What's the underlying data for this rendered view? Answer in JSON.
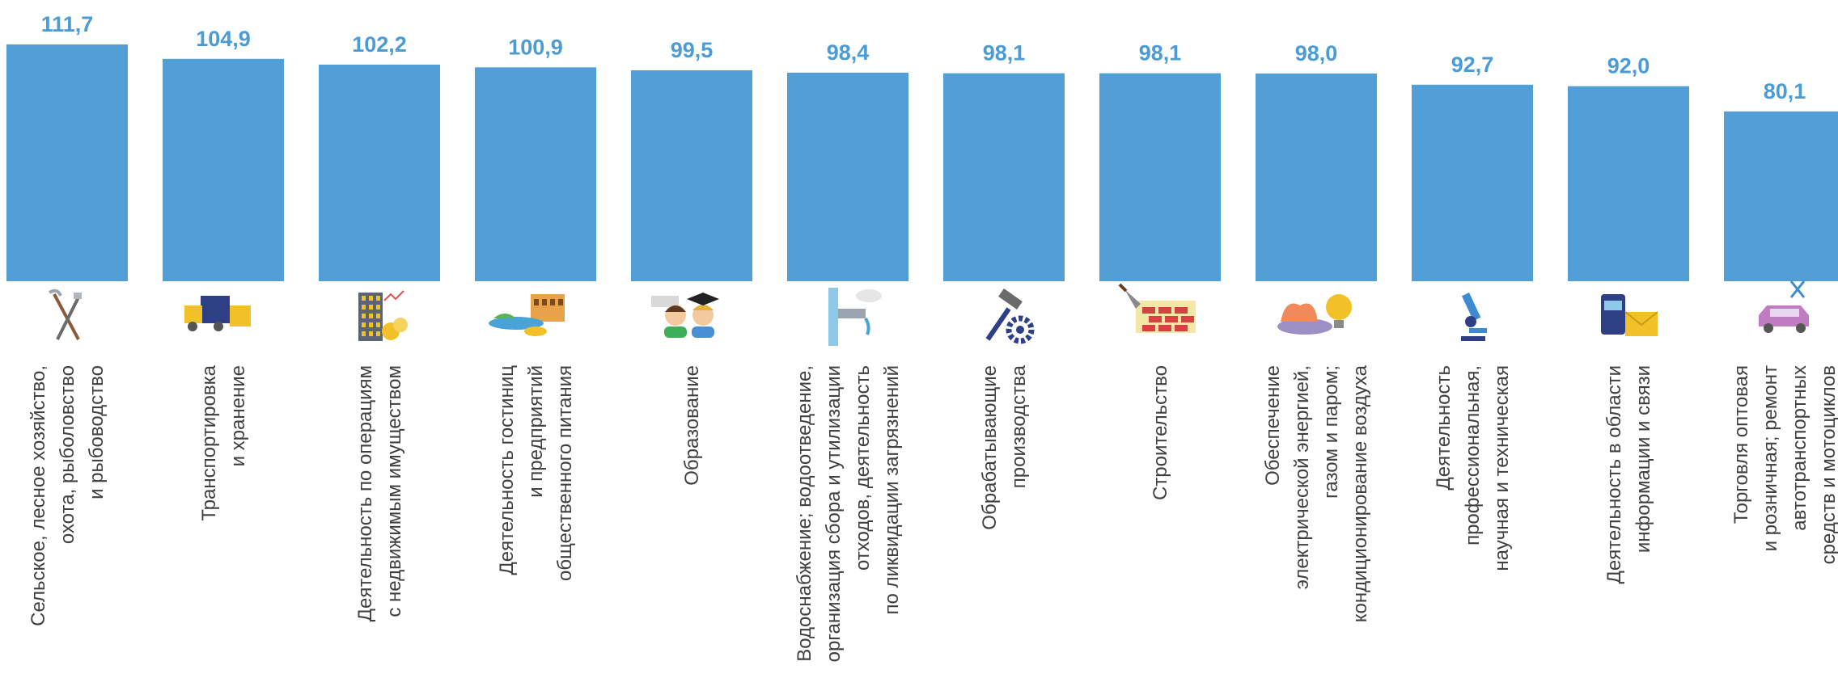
{
  "chart_data": {
    "type": "bar",
    "title": "",
    "xlabel": "",
    "ylabel": "",
    "grid": false,
    "legend": "none",
    "ylim": [
      0,
      111.7
    ],
    "value_labels": [
      "111,7",
      "104,9",
      "102,2",
      "100,9",
      "99,5",
      "98,4",
      "98,1",
      "98,1",
      "98,0",
      "92,7",
      "92,0",
      "80,1"
    ],
    "values": [
      111.7,
      104.9,
      102.2,
      100.9,
      99.5,
      98.4,
      98.1,
      98.1,
      98.0,
      92.7,
      92.0,
      80.1
    ],
    "categories": [
      [
        "Сельское, лесное хозяйство,",
        "охота, рыболовство",
        "и рыбоводство"
      ],
      [
        "Транспортировка",
        "и хранение"
      ],
      [
        "Деятельность по операциям",
        "с недвижимым имуществом"
      ],
      [
        "Деятельность гостиниц",
        "и предприятий",
        "общественного питания"
      ],
      [
        "Образование"
      ],
      [
        "Водоснабжение; водоотведение,",
        "организация сбора и утилизации",
        "отходов, деятельность",
        "по ликвидации загрязнений"
      ],
      [
        "Обрабатывающие",
        "производства"
      ],
      [
        "Строительство"
      ],
      [
        "Обеспечение",
        "электрической энергией,",
        "газом  и паром;",
        "кондиционирование воздуха"
      ],
      [
        "Деятельность",
        "профессиональная,",
        "научная и техническая"
      ],
      [
        "Деятельность в области",
        "информации и связи"
      ],
      [
        "Торговля оптовая",
        "и розничная; ремонт",
        "автотранспортных",
        "средств и мотоциклов"
      ]
    ],
    "icons": [
      "agriculture-tools-icon",
      "delivery-truck-icon",
      "real-estate-building-icon",
      "hotel-restaurant-icon",
      "students-graduation-icon",
      "water-pipe-icon",
      "hammer-gear-icon",
      "brick-trowel-icon",
      "gas-flame-lightbulb-icon",
      "microscope-icon",
      "telephone-envelope-icon",
      "car-repair-icon"
    ],
    "colors": {
      "bar": "#529ed6",
      "value_label": "#4b9bd4",
      "category_label": "#404040"
    }
  }
}
